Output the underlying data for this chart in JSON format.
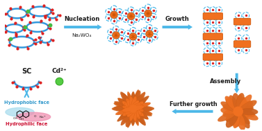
{
  "background_color": "#ffffff",
  "arrow_color": "#4db8e8",
  "text_color_black": "#1a1a1a",
  "text_color_blue": "#3399cc",
  "text_color_red": "#cc1133",
  "nucleation_label": "Nucleation",
  "na2wo4_label": "Na₂WO₄",
  "growth_label": "Growth",
  "assembly_label": "Assembly",
  "further_growth_label": "Further growth",
  "sc_label": "SC",
  "cd_label": "Cd²⁺",
  "hydrophobic_label": "Hydrophobic face",
  "hydrophilic_label": "Hydrophilic face",
  "chain_color": "#3399dd",
  "red_dot_color": "#dd2222",
  "green_dot_color": "#44bb44",
  "orange_color": "#f07020",
  "orange_dark": "#c85000",
  "petal_color": "#4db8e8",
  "hydrophobic_bg": "#aaddee",
  "hydrophilic_bg": "#f090b0",
  "figsize": [
    3.77,
    1.89
  ],
  "dpi": 100
}
